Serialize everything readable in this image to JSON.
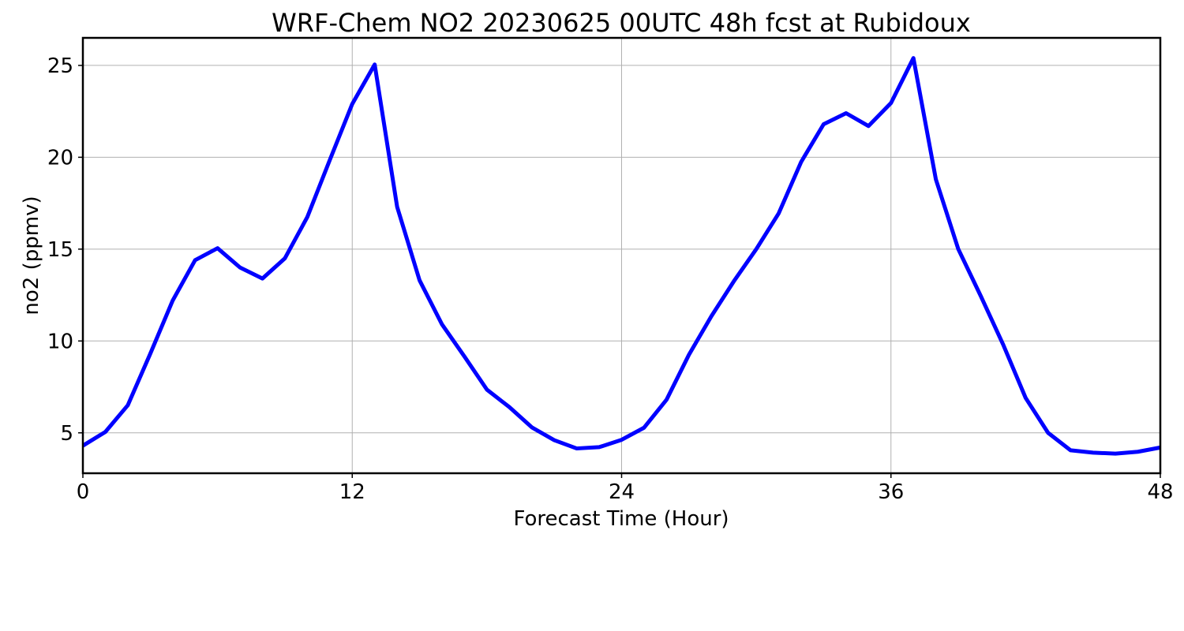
{
  "chart_data": {
    "type": "line",
    "title": "WRF-Chem NO2  20230625 00UTC 48h fcst at Rubidoux",
    "xlabel": "Forecast Time (Hour)",
    "ylabel": "no2  (ppmv)",
    "xlim": [
      0,
      48
    ],
    "ylim": [
      2.8,
      26.5
    ],
    "xticks": [
      0,
      12,
      24,
      36,
      48
    ],
    "xtick_labels": [
      "0",
      "12",
      "24",
      "36",
      "48"
    ],
    "yticks": [
      5,
      10,
      15,
      20,
      25
    ],
    "ytick_labels": [
      "5",
      "10",
      "15",
      "20",
      "25"
    ],
    "grid": true,
    "line_color": "#0000ff",
    "x": [
      0,
      1,
      2,
      3,
      4,
      5,
      6,
      7,
      8,
      9,
      10,
      11,
      12,
      13,
      14,
      15,
      16,
      17,
      18,
      19,
      20,
      21,
      22,
      23,
      24,
      25,
      26,
      27,
      28,
      29,
      30,
      31,
      32,
      33,
      34,
      35,
      36,
      37,
      38,
      39,
      40,
      41,
      42,
      43,
      44,
      45,
      46,
      47,
      48
    ],
    "series": [
      {
        "values": [
          4.3,
          5.05,
          6.5,
          9.3,
          12.2,
          14.4,
          15.05,
          14.0,
          13.4,
          14.5,
          16.75,
          19.85,
          22.9,
          25.05,
          17.3,
          13.3,
          10.9,
          9.15,
          7.35,
          6.4,
          5.3,
          4.6,
          4.15,
          4.22,
          4.62,
          5.28,
          6.8,
          9.25,
          11.35,
          13.25,
          15.0,
          16.95,
          19.75,
          21.8,
          22.4,
          21.7,
          22.95,
          25.4,
          18.8,
          15.0,
          12.45,
          9.8,
          6.9,
          5.0,
          4.05,
          3.92,
          3.87,
          3.97,
          4.2
        ]
      }
    ]
  }
}
